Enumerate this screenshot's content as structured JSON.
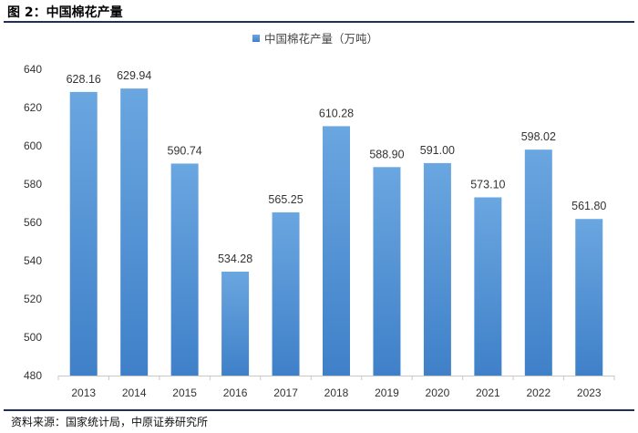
{
  "figure": {
    "title": "图 2：中国棉花产量",
    "source": "资料来源：国家统计局，中原证券研究所"
  },
  "chart_data": {
    "type": "bar",
    "categories": [
      "2013",
      "2014",
      "2015",
      "2016",
      "2017",
      "2018",
      "2019",
      "2020",
      "2021",
      "2022",
      "2023"
    ],
    "series": [
      {
        "name": "中国棉花产量（万吨）",
        "values": [
          628.16,
          629.94,
          590.74,
          534.28,
          565.25,
          610.28,
          588.9,
          591.0,
          573.1,
          598.02,
          561.8
        ],
        "labels": [
          "628.16",
          "629.94",
          "590.74",
          "534.28",
          "565.25",
          "610.28",
          "588.90",
          "591.00",
          "573.10",
          "598.02",
          "561.80"
        ]
      }
    ],
    "ylim": [
      480,
      640
    ],
    "yticks": [
      480,
      500,
      520,
      540,
      560,
      580,
      600,
      620,
      640
    ],
    "legend": "top-center",
    "grid": false,
    "bar_color_top": "#6aa6e0",
    "bar_color_bottom": "#3f80c8"
  }
}
